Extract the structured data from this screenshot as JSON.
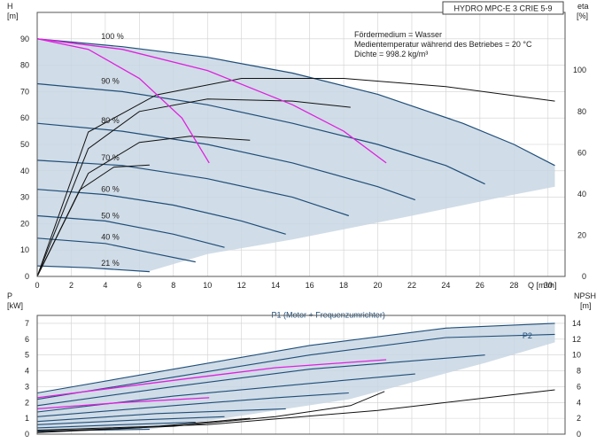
{
  "title": "HYDRO MPC-E 3 CRIE 5-9",
  "info_lines": [
    "Fördermedium = Wasser",
    "Medientemperatur während des Betriebes = 20 °C",
    "Dichte = 998.2 kg/m³"
  ],
  "colors": {
    "envelope": "#c8d6e3",
    "curve": "#1f4e79",
    "system": "#e020e0",
    "eff": "#111111"
  },
  "chart_data": [
    {
      "type": "line",
      "panel": "head",
      "ylabel": "H",
      "yunit": "[m]",
      "xlabel": "Q [m³/h]",
      "xlim": [
        0,
        31
      ],
      "ylim": [
        0,
        100
      ],
      "x_ticks": [
        0,
        2,
        4,
        6,
        8,
        10,
        12,
        14,
        16,
        18,
        20,
        22,
        24,
        26,
        28,
        30
      ],
      "y_ticks": [
        0,
        10,
        20,
        30,
        40,
        50,
        60,
        70,
        80,
        90
      ],
      "y2label": "eta",
      "y2unit": "[%]",
      "y2lim": [
        0,
        128
      ],
      "y2_ticks": [
        0,
        20,
        40,
        60,
        80,
        100
      ],
      "grid": true,
      "speed_labels": [
        {
          "text": "100 %",
          "q": 2.2,
          "h": 91
        },
        {
          "text": "90 %",
          "q": 2.2,
          "h": 74
        },
        {
          "text": "80 %",
          "q": 2.2,
          "h": 59
        },
        {
          "text": "70 %",
          "q": 2.2,
          "h": 45
        },
        {
          "text": "60 %",
          "q": 2.2,
          "h": 33
        },
        {
          "text": "50 %",
          "q": 2.2,
          "h": 23
        },
        {
          "text": "40 %",
          "q": 2.2,
          "h": 15
        },
        {
          "text": "21 %",
          "q": 2.2,
          "h": 5
        }
      ],
      "qh_curves": [
        {
          "speed": 100,
          "points": [
            [
              0,
              90
            ],
            [
              5,
              87
            ],
            [
              10,
              83
            ],
            [
              15,
              77
            ],
            [
              20,
              69
            ],
            [
              25,
              58
            ],
            [
              28,
              50
            ],
            [
              30.4,
              42
            ]
          ]
        },
        {
          "speed": 90,
          "points": [
            [
              0,
              73
            ],
            [
              5,
              70
            ],
            [
              10,
              65
            ],
            [
              15,
              58
            ],
            [
              20,
              50
            ],
            [
              24,
              42
            ],
            [
              26.3,
              35
            ]
          ]
        },
        {
          "speed": 80,
          "points": [
            [
              0,
              58
            ],
            [
              5,
              55
            ],
            [
              10,
              50
            ],
            [
              15,
              43
            ],
            [
              20,
              34
            ],
            [
              22.2,
              29
            ]
          ]
        },
        {
          "speed": 70,
          "points": [
            [
              0,
              44
            ],
            [
              5,
              42
            ],
            [
              10,
              37
            ],
            [
              15,
              30
            ],
            [
              18.3,
              23
            ]
          ]
        },
        {
          "speed": 60,
          "points": [
            [
              0,
              33
            ],
            [
              4,
              31
            ],
            [
              8,
              27
            ],
            [
              12,
              21
            ],
            [
              14.6,
              16
            ]
          ]
        },
        {
          "speed": 50,
          "points": [
            [
              0,
              23
            ],
            [
              4,
              21
            ],
            [
              8,
              16
            ],
            [
              11,
              11
            ]
          ]
        },
        {
          "speed": 40,
          "points": [
            [
              0,
              14.5
            ],
            [
              4,
              12.5
            ],
            [
              7,
              8.5
            ],
            [
              9.3,
              5.5
            ]
          ]
        },
        {
          "speed": 21,
          "points": [
            [
              0,
              4
            ],
            [
              3,
              3.3
            ],
            [
              6.6,
              1.8
            ]
          ]
        }
      ],
      "system_curves": [
        {
          "points": [
            [
              0,
              90
            ],
            [
              3,
              86
            ],
            [
              6,
              75
            ],
            [
              8.5,
              60
            ],
            [
              10.1,
              43
            ]
          ]
        },
        {
          "points": [
            [
              0,
              90
            ],
            [
              5,
              86
            ],
            [
              10,
              78
            ],
            [
              15,
              65
            ],
            [
              18,
              55
            ],
            [
              20.5,
              43
            ]
          ]
        }
      ],
      "efficiency_curves_eta_percent": [
        {
          "points": [
            [
              0,
              0
            ],
            [
              3,
              70
            ],
            [
              7,
              88
            ],
            [
              12,
              96
            ],
            [
              18,
              96
            ],
            [
              24,
              92
            ],
            [
              30.4,
              85
            ]
          ]
        },
        {
          "points": [
            [
              0,
              0
            ],
            [
              3,
              62
            ],
            [
              6,
              80
            ],
            [
              10,
              86
            ],
            [
              15,
              85
            ],
            [
              18.4,
              82
            ]
          ]
        },
        {
          "points": [
            [
              0,
              0
            ],
            [
              3,
              50
            ],
            [
              6,
              65
            ],
            [
              9,
              68
            ],
            [
              12.5,
              66
            ]
          ]
        },
        {
          "points": [
            [
              0,
              0
            ],
            [
              2.5,
              42
            ],
            [
              4.5,
              53
            ],
            [
              6.6,
              54
            ]
          ]
        }
      ]
    },
    {
      "type": "line",
      "panel": "power",
      "ylabel": "P",
      "yunit": "[kW]",
      "xlim": [
        0,
        31
      ],
      "ylim": [
        0,
        7.5
      ],
      "y_ticks": [
        0,
        1,
        2,
        3,
        4,
        5,
        6,
        7
      ],
      "y2label": "NPSH",
      "y2unit": "[m]",
      "y2lim": [
        0,
        15
      ],
      "y2_ticks": [
        0,
        2,
        4,
        6,
        8,
        10,
        12,
        14
      ],
      "grid": true,
      "legend": [
        {
          "text": "P1 (Motor + Frequenzumrichter)",
          "q": 20,
          "p": 7.35
        },
        {
          "text": "P2",
          "q": 28.5,
          "p": 6.05
        }
      ],
      "power_curves": [
        {
          "points": [
            [
              0,
              2.6
            ],
            [
              8,
              4.1
            ],
            [
              16,
              5.6
            ],
            [
              24,
              6.7
            ],
            [
              30.4,
              7.0
            ]
          ]
        },
        {
          "points": [
            [
              0,
              2.2
            ],
            [
              8,
              3.6
            ],
            [
              16,
              5.0
            ],
            [
              24,
              6.1
            ],
            [
              30.4,
              6.3
            ]
          ]
        },
        {
          "points": [
            [
              0,
              1.8
            ],
            [
              8,
              3.0
            ],
            [
              16,
              4.1
            ],
            [
              26.3,
              5.0
            ]
          ]
        },
        {
          "points": [
            [
              0,
              1.4
            ],
            [
              8,
              2.4
            ],
            [
              16,
              3.2
            ],
            [
              22.2,
              3.8
            ]
          ]
        },
        {
          "points": [
            [
              0,
              1.1
            ],
            [
              8,
              1.8
            ],
            [
              14,
              2.3
            ],
            [
              18.3,
              2.6
            ]
          ]
        },
        {
          "points": [
            [
              0,
              0.8
            ],
            [
              7,
              1.3
            ],
            [
              14.6,
              1.6
            ]
          ]
        },
        {
          "points": [
            [
              0,
              0.6
            ],
            [
              6,
              0.9
            ],
            [
              11,
              1.1
            ]
          ]
        },
        {
          "points": [
            [
              0,
              0.4
            ],
            [
              5,
              0.6
            ],
            [
              9.3,
              0.75
            ]
          ]
        },
        {
          "points": [
            [
              0,
              0.2
            ],
            [
              6.6,
              0.3
            ]
          ]
        }
      ],
      "system_power_curves": [
        {
          "points": [
            [
              0,
              1.6
            ],
            [
              5,
              2.0
            ],
            [
              10.1,
              2.3
            ]
          ]
        },
        {
          "points": [
            [
              0,
              2.3
            ],
            [
              8,
              3.4
            ],
            [
              14,
              4.2
            ],
            [
              20.5,
              4.7
            ]
          ]
        }
      ],
      "npsh_curves": [
        {
          "points": [
            [
              0,
              0.5
            ],
            [
              10,
              1.2
            ],
            [
              20,
              3.0
            ],
            [
              30.4,
              5.6
            ]
          ]
        },
        {
          "points": [
            [
              0,
              0.3
            ],
            [
              8,
              1.0
            ],
            [
              14,
              2.2
            ],
            [
              18.4,
              3.6
            ],
            [
              20.4,
              5.4
            ]
          ]
        },
        {
          "points": [
            [
              0,
              0.2
            ],
            [
              6,
              0.8
            ],
            [
              12.5,
              2.0
            ]
          ]
        }
      ]
    }
  ]
}
